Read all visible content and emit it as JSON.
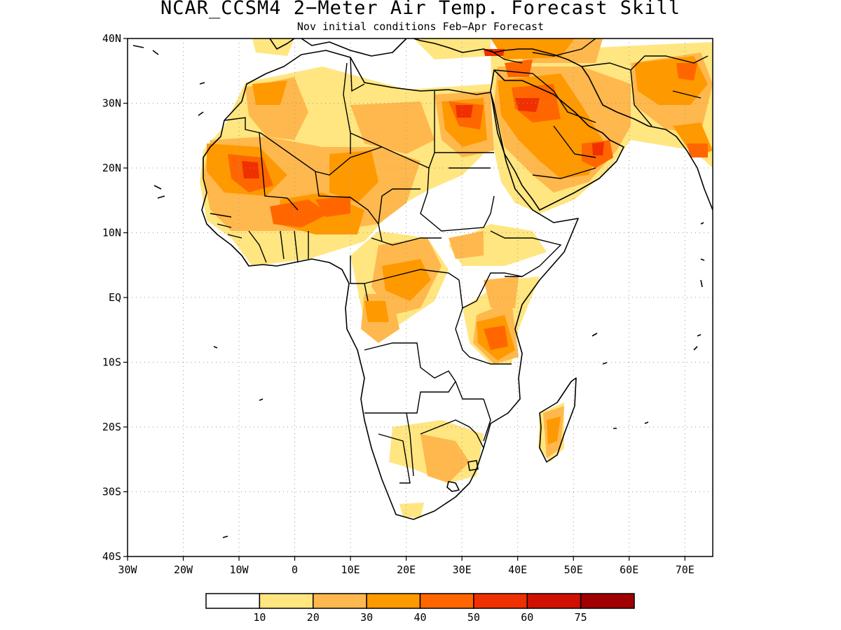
{
  "title": "NCAR_CCSM4 2−Meter Air Temp. Forecast Skill",
  "subtitle": "Nov initial conditions  Feb−Apr Forecast",
  "map": {
    "region": "Africa and Arabian Peninsula",
    "lon_range": [
      -30,
      75
    ],
    "lat_range": [
      -40,
      40
    ],
    "grid": true,
    "lon_labels": [
      "30W",
      "20W",
      "10W",
      "0",
      "10E",
      "20E",
      "30E",
      "40E",
      "50E",
      "60E",
      "70E"
    ],
    "lat_labels": [
      "40N",
      "30N",
      "20N",
      "10N",
      "EQ",
      "10S",
      "20S",
      "30S",
      "40S"
    ]
  },
  "colorbar": {
    "labels": [
      "10",
      "20",
      "30",
      "40",
      "50",
      "60",
      "75"
    ],
    "colors": [
      "#ffffff",
      "#ffe680",
      "#ffb84d",
      "#ff9900",
      "#ff6600",
      "#f03000",
      "#d01000",
      "#a00000"
    ]
  }
}
